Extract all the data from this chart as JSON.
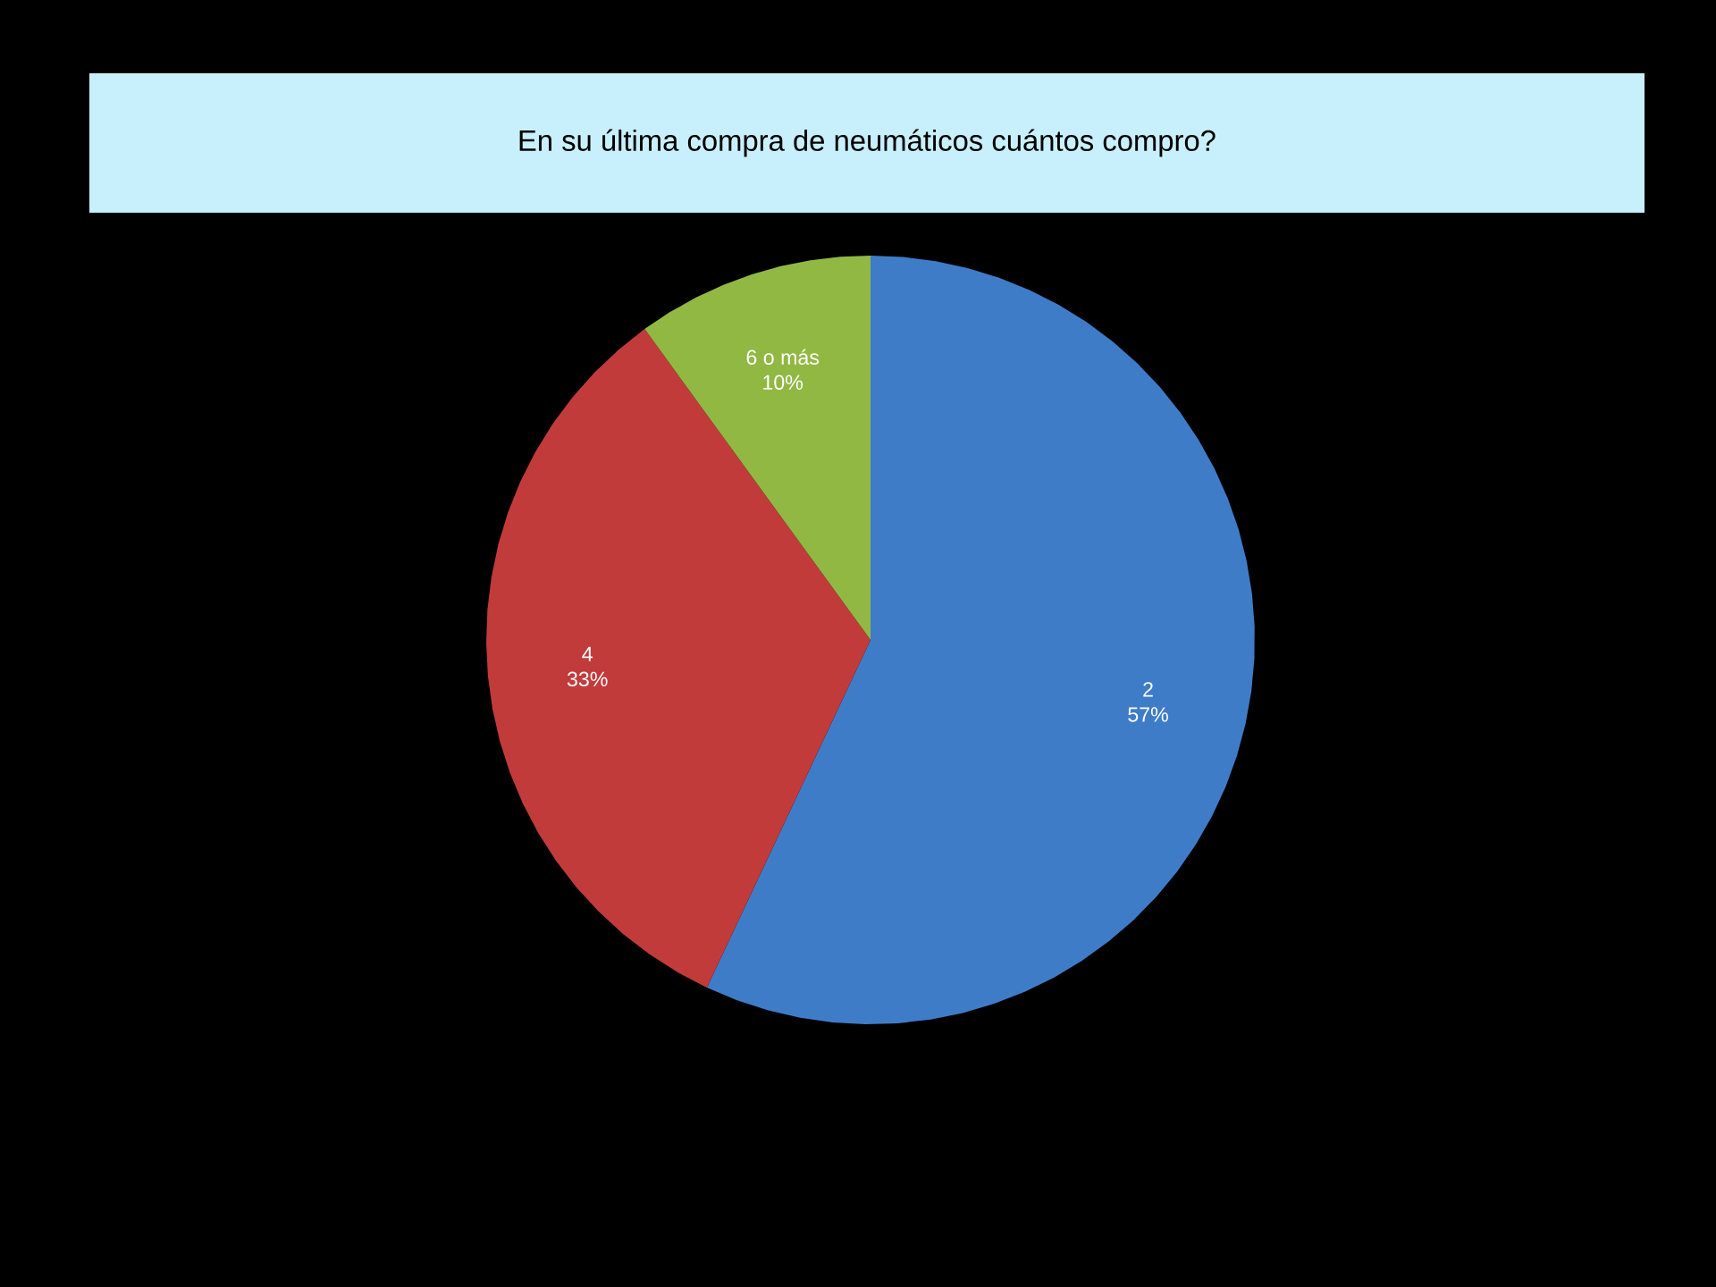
{
  "chart_data": {
    "type": "pie",
    "title": "En su última compra de neumáticos cuántos compro?",
    "categories": [
      "2",
      "4",
      "6 o más"
    ],
    "values": [
      57,
      33,
      10
    ],
    "colors": [
      "#3f7cc8",
      "#c23b3b",
      "#92b844"
    ],
    "value_labels": [
      "57%",
      "33%",
      "10%"
    ]
  }
}
